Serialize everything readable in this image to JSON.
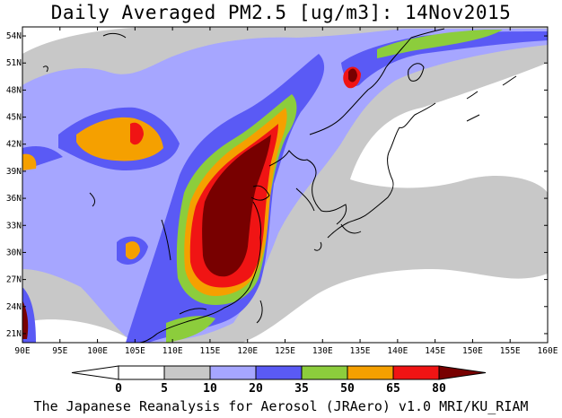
{
  "title": "Daily Averaged PM2.5 [ug/m3]: 14Nov2015",
  "footer": "The Japanese Reanalysis for Aerosol (JRAero) v1.0 MRI/KU_RIAM",
  "lat_labels": [
    "21N",
    "24N",
    "27N",
    "30N",
    "33N",
    "36N",
    "39N",
    "42N",
    "45N",
    "48N",
    "51N",
    "54N"
  ],
  "lon_labels": [
    "90E",
    "95E",
    "100E",
    "105E",
    "110E",
    "115E",
    "120E",
    "125E",
    "130E",
    "135E",
    "140E",
    "145E",
    "150E",
    "155E",
    "160E"
  ],
  "colorbar": {
    "labels": [
      "0",
      "5",
      "10",
      "20",
      "35",
      "50",
      "65",
      "80"
    ],
    "colors": [
      "#ffffff",
      "#ffffff",
      "#c8c8c8",
      "#a6a6ff",
      "#5a5af5",
      "#8ccd3c",
      "#f5a000",
      "#f01414",
      "#780000"
    ]
  },
  "colors": {
    "grey": "#c8c8c8",
    "light_blue": "#a6a6ff",
    "blue": "#5a5af5",
    "green": "#8ccd3c",
    "orange": "#f5a000",
    "red": "#f01414",
    "dark_red": "#780000"
  },
  "grid": {
    "lon_min": 90,
    "lon_max": 160,
    "lat_min": 20,
    "lat_max": 55
  }
}
